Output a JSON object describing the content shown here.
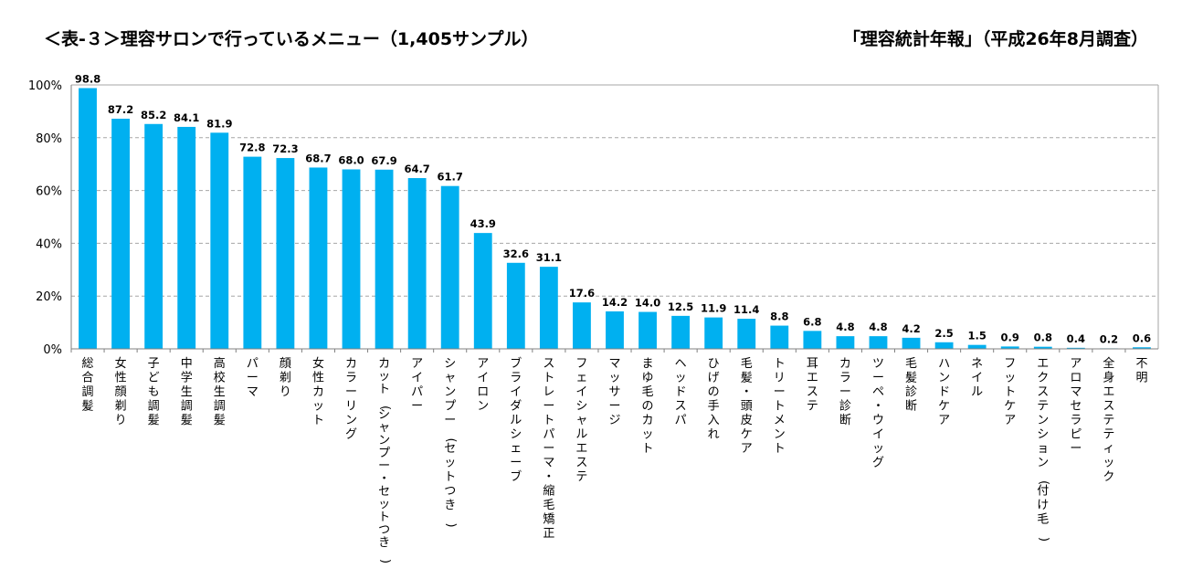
{
  "header": {
    "title": "＜表-３＞理容サロンで行っているメニュー（1,405サンプル）",
    "source": "「理容統計年報」（平成26年8月調査）"
  },
  "colors": {
    "bar": "#00B0F0",
    "grid": "#A6A6A6",
    "axis": "#808080"
  },
  "chart_data": {
    "type": "bar",
    "title": "＜表-３＞理容サロンで行っているメニュー（1,405サンプル）",
    "subtitle": "「理容統計年報」（平成26年8月調査）",
    "xlabel": "",
    "ylabel": "",
    "ylim": [
      0,
      100
    ],
    "yticks": [
      "0%",
      "20%",
      "40%",
      "60%",
      "80%",
      "100%"
    ],
    "grid": true,
    "categories": [
      "総合調髪",
      "女性顔剃り",
      "子ども調髪",
      "中学生調髪",
      "高校生調髪",
      "パーマ",
      "顔剃り",
      "女性カット",
      "カラーリング",
      "カット(シャンプー・セットつき)",
      "アイパー",
      "シャンプー(セットつき)",
      "アイロン",
      "ブライダルシェーブ",
      "ストレートパーマ・縮毛矯正",
      "フェイシャルエステ",
      "マッサージ",
      "まゆ毛のカット",
      "ヘッドスパ",
      "ひげの手入れ",
      "毛髪・頭皮ケア",
      "トリートメント",
      "耳エステ",
      "カラー診断",
      "ツーペ・ウイッグ",
      "毛髪診断",
      "ハンドケア",
      "ネイル",
      "フットケア",
      "エクステンション(付け毛)",
      "アロマセラピー",
      "全身エステティック",
      "不明"
    ],
    "values": [
      98.8,
      87.2,
      85.2,
      84.1,
      81.9,
      72.8,
      72.3,
      68.7,
      68.0,
      67.9,
      64.7,
      61.7,
      43.9,
      32.6,
      31.1,
      17.6,
      14.2,
      14.0,
      12.5,
      11.9,
      11.4,
      8.8,
      6.8,
      4.8,
      4.8,
      4.2,
      2.5,
      1.5,
      0.9,
      0.8,
      0.4,
      0.2,
      0.6
    ],
    "value_labels": [
      "98.8",
      "87.2",
      "85.2",
      "84.1",
      "81.9",
      "72.8",
      "72.3",
      "68.7",
      "68.0",
      "67.9",
      "64.7",
      "61.7",
      "43.9",
      "32.6",
      "31.1",
      "17.6",
      "14.2",
      "14.0",
      "12.5",
      "11.9",
      "11.4",
      "8.8",
      "6.8",
      "4.8",
      "4.8",
      "4.2",
      "2.5",
      "1.5",
      "0.9",
      "0.8",
      "0.4",
      "0.2",
      "0.6"
    ]
  }
}
